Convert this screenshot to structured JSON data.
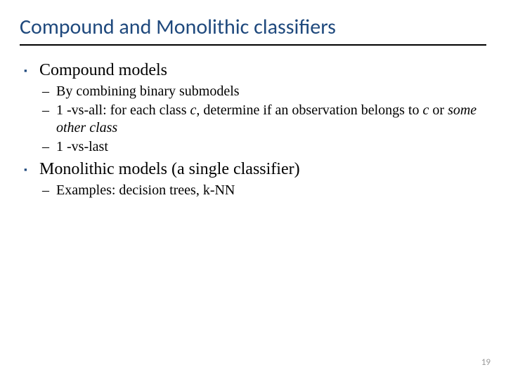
{
  "title": {
    "text": "Compound and Monolithic classifiers",
    "color": "#1f497d",
    "fontsize": 30,
    "weight": "400"
  },
  "body": {
    "fontsize_main": 24,
    "fontsize_sub": 20,
    "color": "#000000",
    "square_bullet_color": "#1f497d",
    "dash_bullet_color": "#000000",
    "items": [
      {
        "text": "Compound models",
        "sub": [
          {
            "parts": [
              {
                "text": "By combining binary submodels"
              }
            ]
          },
          {
            "parts": [
              {
                "text": "1 -vs-all: for each class "
              },
              {
                "text": "c",
                "italic": true
              },
              {
                "text": ", determine if an observation belongs to "
              },
              {
                "text": "c",
                "italic": true
              },
              {
                "text": " or "
              },
              {
                "text": "some other class",
                "italic": true
              }
            ]
          },
          {
            "parts": [
              {
                "text": "1 -vs-last"
              }
            ]
          }
        ]
      },
      {
        "text": "Monolithic models (a single classifier)",
        "sub": [
          {
            "parts": [
              {
                "text": "Examples: decision trees, k-NN"
              }
            ]
          }
        ]
      }
    ]
  },
  "page_number": {
    "value": "19",
    "color": "#9a9a9a",
    "fontsize": 13
  }
}
